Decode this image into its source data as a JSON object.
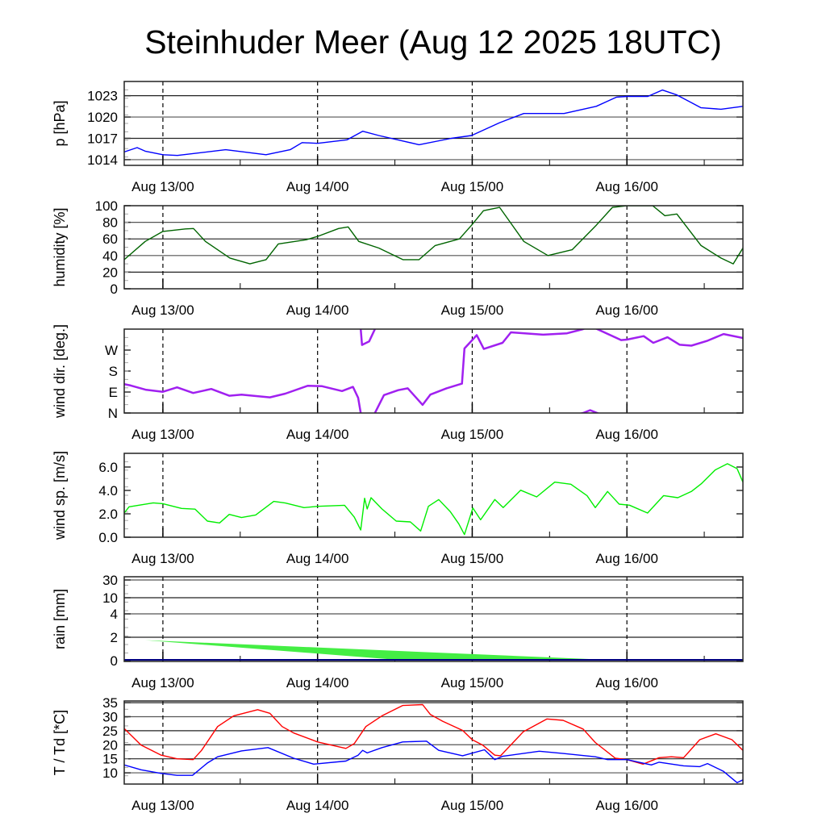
{
  "title": "Steinhuder Meer (Aug 12 2025 18UTC)",
  "x_ticks": [
    "Aug 13/00",
    "Aug 14/00",
    "Aug 15/00",
    "Aug 16/00"
  ],
  "chart_data": [
    {
      "type": "line",
      "ylabel": "p [hPa]",
      "ylim": [
        1013.2,
        1025
      ],
      "yticks": [
        1014,
        1017,
        1020,
        1023
      ],
      "ytick_labels": [
        "1014",
        "1017",
        "1020",
        "1023"
      ],
      "grid": true,
      "xlim_hours": [
        0,
        96
      ],
      "x_unit": "hours since Aug 12 18UTC",
      "series": [
        {
          "name": "pressure",
          "color": "#0000ff",
          "x": [
            0,
            2,
            3.25,
            6,
            8.25,
            15.75,
            22,
            25.75,
            27.6,
            30,
            34.6,
            37,
            39.5,
            45.75,
            50.75,
            53.9,
            58.25,
            62,
            68.25,
            73.25,
            76.4,
            78,
            81.25,
            83.5,
            85.75,
            89.5,
            92.6,
            96
          ],
          "y": [
            1015.1,
            1015.7,
            1015.2,
            1014.7,
            1014.6,
            1015.4,
            1014.7,
            1015.4,
            1016.4,
            1016.3,
            1016.8,
            1018.0,
            1017.4,
            1016.1,
            1017.0,
            1017.4,
            1019.2,
            1020.5,
            1020.5,
            1021.5,
            1022.8,
            1022.9,
            1022.9,
            1023.8,
            1023.1,
            1021.3,
            1021.1,
            1021.5
          ]
        }
      ]
    },
    {
      "type": "line",
      "ylabel": "humidity [%]",
      "ylim": [
        0,
        100
      ],
      "yticks": [
        0,
        20,
        40,
        60,
        80,
        100
      ],
      "ytick_labels": [
        "0",
        "20",
        "40",
        "60",
        "80",
        "100"
      ],
      "grid": true,
      "series": [
        {
          "name": "humidity",
          "color": "#006400",
          "x": [
            0,
            3.25,
            6,
            9.5,
            10.75,
            12.6,
            16.4,
            19.5,
            22,
            23.9,
            28.25,
            30,
            33.25,
            34.75,
            36.4,
            39.5,
            43.25,
            45.75,
            48.25,
            52,
            53.9,
            55.75,
            58.25,
            62,
            65.75,
            69.5,
            73.25,
            75.75,
            78,
            82,
            83.9,
            85.75,
            89.5,
            92.6,
            94.5,
            96
          ],
          "y": [
            35,
            57,
            69,
            72,
            72.5,
            57,
            37,
            30,
            35,
            54,
            59,
            63,
            72.5,
            74.5,
            57,
            49,
            35,
            35,
            52,
            60,
            76.5,
            94,
            98,
            57,
            40,
            47,
            76.5,
            98,
            100,
            100,
            88,
            90,
            52,
            37,
            30,
            49
          ]
        }
      ]
    },
    {
      "type": "line",
      "ylabel": "wind dir. [deg.]",
      "ylim": [
        0,
        360
      ],
      "wraps": true,
      "yticks": [
        0,
        90,
        180,
        270
      ],
      "ytick_labels": [
        "N",
        "E",
        "S",
        "W"
      ],
      "grid": false,
      "series": [
        {
          "name": "wind direction (unwrapped deg)",
          "color": "#a020f0",
          "x": [
            0,
            1,
            3.3,
            6,
            8.2,
            10.7,
            13.5,
            16.3,
            18.2,
            22.6,
            25,
            28.5,
            30.7,
            33.8,
            35.5,
            36.3,
            36.7,
            36.9,
            38,
            38.9,
            40.3,
            42.5,
            44,
            46.3,
            47.5,
            50,
            52.4,
            52.8,
            54.7,
            55.8,
            58.7,
            60,
            65,
            68.7,
            71.2,
            72.3,
            73.4,
            77.1,
            78,
            80.6,
            82.1,
            84.3,
            86.2,
            88,
            90.5,
            93,
            96
          ],
          "y": [
            124,
            118,
            100,
            91,
            110,
            86,
            103,
            74,
            79,
            67,
            83,
            117,
            115,
            94,
            112,
            65,
            0,
            -68,
            -53,
            0,
            77,
            98,
            106,
            35,
            79,
            106,
            126,
            277,
            334,
            275,
            301,
            346,
            336,
            342,
            360,
            372,
            360,
            313,
            315,
            330,
            301,
            325,
            293,
            289,
            310,
            339,
            322
          ]
        }
      ]
    },
    {
      "type": "line",
      "ylabel": "wind sp. [m/s]",
      "ylim": [
        0,
        7.17
      ],
      "yticks": [
        0,
        2,
        4,
        6
      ],
      "ytick_labels": [
        "0.0",
        "2.0",
        "4.0",
        "6.0"
      ],
      "grid": false,
      "series": [
        {
          "name": "wind speed",
          "color": "#00ee00",
          "x": [
            0,
            0.75,
            4.5,
            6,
            8.9,
            11,
            12.9,
            14.8,
            16.3,
            18.2,
            20.4,
            23.2,
            25,
            27.9,
            30,
            34.2,
            35.7,
            36.7,
            37.3,
            37.7,
            38.3,
            40,
            42.2,
            44.4,
            46,
            47.2,
            48.8,
            50.6,
            51.9,
            52.8,
            54.1,
            55.3,
            57.5,
            58.8,
            61.5,
            64,
            66.8,
            69.3,
            71.8,
            73.1,
            75,
            76.8,
            78.4,
            81.2,
            83.7,
            85.9,
            88,
            89.6,
            91.7,
            93.6,
            95.1,
            96
          ],
          "y": [
            2.07,
            2.6,
            2.94,
            2.87,
            2.46,
            2.4,
            1.38,
            1.22,
            1.95,
            1.68,
            1.9,
            3.06,
            2.92,
            2.53,
            2.64,
            2.73,
            1.72,
            0.62,
            3.33,
            2.41,
            3.38,
            2.41,
            1.38,
            1.31,
            0.53,
            2.64,
            3.22,
            2.18,
            1.15,
            0.23,
            2.5,
            1.49,
            3.22,
            2.53,
            4.02,
            3.45,
            4.71,
            4.53,
            3.56,
            2.53,
            3.91,
            2.83,
            2.74,
            2.07,
            3.56,
            3.38,
            3.91,
            4.6,
            5.75,
            6.28,
            5.86,
            4.71
          ]
        }
      ]
    },
    {
      "type": "area",
      "ylabel": "rain [mm]",
      "scale": "nonlinear",
      "yticks": [
        0,
        2,
        4,
        10,
        30
      ],
      "ytick_labels": [
        "0",
        "2",
        "4",
        "10",
        "30"
      ],
      "grid": true,
      "series": [
        {
          "name": "rain band upper",
          "color": "#44ee44",
          "x": [
            3.25,
            78
          ],
          "y": [
            1.75,
            0
          ]
        },
        {
          "name": "rain band lower",
          "color": "#44ee44",
          "x": [
            3.25,
            44
          ],
          "y": [
            1.75,
            0
          ]
        },
        {
          "name": "rain observed",
          "color": "#000080",
          "x": [
            0,
            96
          ],
          "y": [
            0,
            0
          ]
        }
      ]
    },
    {
      "type": "line",
      "ylabel": "T / Td [*C]",
      "ylim": [
        6,
        35.6
      ],
      "yticks": [
        10,
        15,
        20,
        25,
        30,
        35
      ],
      "ytick_labels": [
        "10",
        "15",
        "20",
        "25",
        "30",
        "35"
      ],
      "grid": true,
      "series": [
        {
          "name": "T",
          "color": "#ff0000",
          "x": [
            0,
            2.6,
            5.75,
            8.2,
            10.7,
            12,
            14.5,
            17,
            20.7,
            22.6,
            24.5,
            26.3,
            30,
            34.4,
            35.7,
            37.5,
            40,
            43.2,
            46.3,
            47.5,
            49.4,
            52.5,
            54,
            55.6,
            57.5,
            58.4,
            61.9,
            65.6,
            68.1,
            71.2,
            73.1,
            76.2,
            78,
            80.5,
            83,
            84.9,
            86.8,
            89.3,
            91.8,
            94.3,
            96
          ],
          "y": [
            25.8,
            19.9,
            16.3,
            15,
            14.7,
            18,
            26.5,
            30.3,
            32.5,
            31.2,
            26.5,
            24.2,
            21,
            18.7,
            20.4,
            26.5,
            30.3,
            34,
            34.3,
            30.8,
            28.4,
            25.1,
            21.8,
            19.9,
            16.3,
            16.1,
            24.6,
            29.2,
            28.7,
            25.6,
            20.8,
            15.2,
            14.7,
            13.1,
            15.4,
            15.7,
            15.4,
            21.8,
            23.9,
            21.8,
            18
          ]
        },
        {
          "name": "Td",
          "color": "#0000ff",
          "x": [
            0,
            2.6,
            5.75,
            8.2,
            10.6,
            12.9,
            14.5,
            18.2,
            22.3,
            26.3,
            29.4,
            34.4,
            36.3,
            37,
            37.7,
            40,
            43.2,
            46.9,
            48.8,
            52.5,
            55.9,
            57.5,
            58.7,
            64.4,
            68.1,
            73.1,
            75,
            78,
            81.8,
            83,
            86.8,
            89.3,
            90.5,
            93,
            95.1,
            96
          ],
          "y": [
            12.8,
            11.1,
            9.8,
            9.1,
            9.1,
            13.5,
            15.7,
            17.8,
            19,
            15.2,
            13.1,
            14.2,
            16.3,
            18,
            17.1,
            19,
            21,
            21.3,
            18,
            16.1,
            18.2,
            14.7,
            15.9,
            17.7,
            16.9,
            15.7,
            14.7,
            14.7,
            12.8,
            13.8,
            12.5,
            12.2,
            13.3,
            10.5,
            6.5,
            7.5
          ]
        }
      ]
    }
  ]
}
